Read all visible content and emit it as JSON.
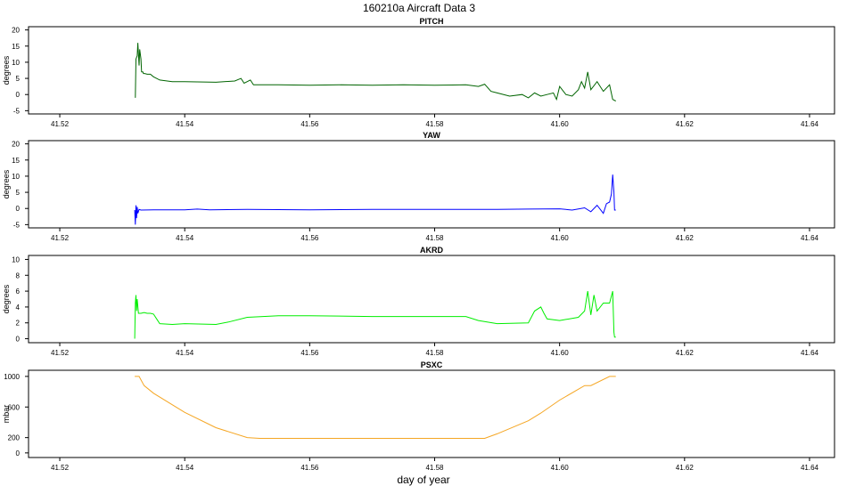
{
  "title": "160210a    Aircraft Data 3",
  "xlabel": "day of year",
  "chart_data": [
    {
      "type": "line",
      "title": "PITCH",
      "ylabel": "degrees",
      "color": "#006400",
      "xlim": [
        41.515,
        41.644
      ],
      "ylim": [
        -6,
        21
      ],
      "xticks": [
        "41.52",
        "41.54",
        "41.56",
        "41.58",
        "41.60",
        "41.62",
        "41.64"
      ],
      "yticks": [
        "-5",
        "0",
        "5",
        "10",
        "15",
        "20"
      ],
      "series": [
        {
          "x": [
            41.5321,
            41.5322,
            41.5324,
            41.5325,
            41.5327,
            41.5328,
            41.533,
            41.5331,
            41.5333,
            41.5334,
            41.5336,
            41.534,
            41.5345,
            41.535,
            41.536,
            41.538,
            41.54,
            41.545,
            41.548,
            41.549,
            41.5495,
            41.55,
            41.5505,
            41.551,
            41.552,
            41.555,
            41.56,
            41.565,
            41.57,
            41.575,
            41.58,
            41.585,
            41.587,
            41.588,
            41.589,
            41.59,
            41.592,
            41.594,
            41.595,
            41.596,
            41.597,
            41.598,
            41.599,
            41.5995,
            41.6,
            41.601,
            41.602,
            41.603,
            41.6035,
            41.604,
            41.6045,
            41.605,
            41.606,
            41.607,
            41.608,
            41.6085,
            41.609
          ],
          "y": [
            -1,
            11,
            12,
            16,
            9,
            14,
            11,
            7,
            7,
            6.5,
            6.5,
            6.3,
            6.3,
            5.5,
            4.5,
            4.0,
            4.0,
            3.8,
            4.2,
            5.0,
            3.5,
            4.0,
            4.5,
            3.0,
            3.0,
            3.0,
            2.9,
            3.0,
            2.9,
            3.0,
            2.9,
            3.0,
            2.5,
            3.2,
            1.0,
            0.5,
            -0.5,
            0.0,
            -1.0,
            0.5,
            -0.5,
            0.0,
            0.5,
            -1.5,
            2.5,
            0.0,
            -0.5,
            1.5,
            4.0,
            2.0,
            7.0,
            1.5,
            4.0,
            1.0,
            3.0,
            -1.5,
            -2.0
          ]
        }
      ]
    },
    {
      "type": "line",
      "title": "YAW",
      "ylabel": "degrees",
      "color": "#0000ff",
      "xlim": [
        41.515,
        41.644
      ],
      "ylim": [
        -6,
        21
      ],
      "xticks": [
        "41.52",
        "41.54",
        "41.56",
        "41.58",
        "41.60",
        "41.62",
        "41.64"
      ],
      "yticks": [
        "-5",
        "0",
        "5",
        "10",
        "15",
        "20"
      ],
      "series": [
        {
          "x": [
            41.532,
            41.5321,
            41.5322,
            41.5323,
            41.5324,
            41.5325,
            41.5327,
            41.533,
            41.535,
            41.54,
            41.542,
            41.544,
            41.55,
            41.56,
            41.57,
            41.58,
            41.59,
            41.595,
            41.6,
            41.602,
            41.604,
            41.605,
            41.606,
            41.607,
            41.6075,
            41.608,
            41.6083,
            41.6085,
            41.6087,
            41.6088,
            41.609
          ],
          "y": [
            -0.5,
            -5,
            1,
            -3,
            0.5,
            -1.5,
            -0.3,
            -0.5,
            -0.4,
            -0.4,
            -0.2,
            -0.4,
            -0.3,
            -0.4,
            -0.3,
            -0.3,
            -0.3,
            -0.2,
            -0.1,
            -0.5,
            0.2,
            -1.0,
            1.0,
            -1.5,
            1.5,
            2.0,
            4.5,
            10.5,
            5.0,
            -0.5,
            -0.5
          ]
        }
      ]
    },
    {
      "type": "line",
      "title": "AKRD",
      "ylabel": "degrees",
      "color": "#00ee00",
      "xlim": [
        41.515,
        41.644
      ],
      "ylim": [
        -0.5,
        10.5
      ],
      "xticks": [
        "41.52",
        "41.54",
        "41.56",
        "41.58",
        "41.60",
        "41.62",
        "41.64"
      ],
      "yticks": [
        "0",
        "2",
        "4",
        "6",
        "8",
        "10"
      ],
      "series": [
        {
          "x": [
            41.532,
            41.5321,
            41.5322,
            41.5323,
            41.5324,
            41.5326,
            41.533,
            41.5335,
            41.534,
            41.5345,
            41.535,
            41.5355,
            41.536,
            41.538,
            41.54,
            41.545,
            41.547,
            41.55,
            41.555,
            41.56,
            41.57,
            41.58,
            41.585,
            41.587,
            41.59,
            41.595,
            41.596,
            41.597,
            41.5975,
            41.598,
            41.6,
            41.603,
            41.604,
            41.6045,
            41.605,
            41.6055,
            41.606,
            41.607,
            41.608,
            41.6085,
            41.6087,
            41.6088,
            41.609
          ],
          "y": [
            0,
            4.5,
            5.5,
            3.5,
            5.0,
            3.2,
            3.2,
            3.3,
            3.2,
            3.2,
            3.1,
            2.5,
            1.9,
            1.8,
            1.9,
            1.8,
            2.1,
            2.7,
            2.9,
            2.9,
            2.8,
            2.8,
            2.8,
            2.3,
            1.9,
            2.0,
            3.5,
            4.0,
            3.2,
            2.5,
            2.3,
            2.7,
            3.5,
            6.0,
            3.0,
            5.5,
            3.5,
            4.5,
            4.5,
            6.0,
            0.8,
            0.2,
            0.2
          ]
        }
      ]
    },
    {
      "type": "line",
      "title": "PSXC",
      "ylabel": "mbar",
      "color": "#f5a623",
      "xlim": [
        41.515,
        41.644
      ],
      "ylim": [
        -60,
        1080
      ],
      "xticks": [
        "41.52",
        "41.54",
        "41.56",
        "41.58",
        "41.60",
        "41.62",
        "41.64"
      ],
      "yticks": [
        "0",
        "200",
        "600",
        "1000"
      ],
      "series": [
        {
          "x": [
            41.532,
            41.5327,
            41.5335,
            41.535,
            41.54,
            41.545,
            41.55,
            41.552,
            41.56,
            41.57,
            41.58,
            41.588,
            41.59,
            41.595,
            41.597,
            41.6,
            41.604,
            41.605,
            41.608,
            41.609
          ],
          "y": [
            1000,
            1000,
            880,
            780,
            530,
            330,
            200,
            190,
            190,
            190,
            190,
            190,
            250,
            420,
            520,
            690,
            880,
            880,
            1000,
            1000
          ]
        }
      ]
    }
  ]
}
